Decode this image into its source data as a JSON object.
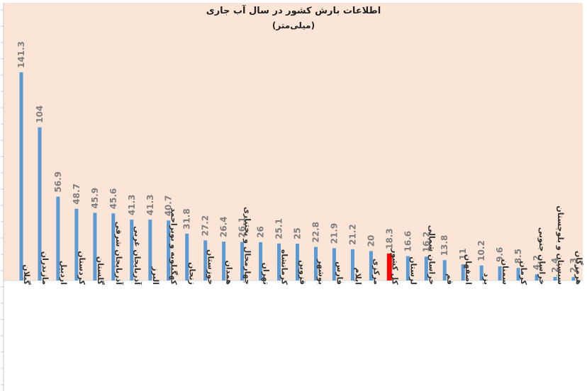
{
  "chart_data": {
    "type": "bar",
    "title": "اطلاعات بارش کشور در سال آب جاری",
    "subtitle": "(میلی‌متر)",
    "xlabel": "",
    "ylabel": "",
    "ylim": [
      0,
      150
    ],
    "grid": false,
    "legend": "none",
    "colors": {
      "background": "#ffffff",
      "plot_area": "#fbe5d6",
      "bar": "#5b9bd5",
      "highlight_bar": "#ff0000",
      "label": "#7f7f7f",
      "category_text": "#333333"
    },
    "highlight_category": "کل کشور",
    "categories": [
      "گیلان",
      "مازندران",
      "اردبیل",
      "کردستان",
      "گلستان",
      "آذربایجان شرقی",
      "آذربایجان غربی",
      "البرز",
      "کهگیلویه و بویراحمد",
      "زنجان",
      "خوزستان",
      "همدان",
      "چهارمحال و بختیاری",
      "تهران",
      "کرمانشاه",
      "قزوین",
      "بوشهر",
      "فارس",
      "ایلام",
      "مرکزی",
      "کل کشور",
      "لرستان",
      "خراسان شمالی",
      "قم",
      "اصفهان",
      "یزد",
      "سمنان",
      "کرمان",
      "خراسان جنوبی",
      "سیستان و بلوچستان",
      "هرمزگان"
    ],
    "values": [
      141.3,
      104,
      56.9,
      48.7,
      45.9,
      45.6,
      41.3,
      41.3,
      40.7,
      31.8,
      27.2,
      26.4,
      26.1,
      26,
      25.1,
      25,
      22.8,
      21.9,
      21.2,
      20,
      18.3,
      16.6,
      16.2,
      13.8,
      11,
      10.2,
      9.6,
      8.5,
      4.2,
      2.4,
      2.3
    ],
    "value_labels": [
      "141.3",
      "104",
      "56.9",
      "48.7",
      "45.9",
      "45.6",
      "41.3",
      "41.3",
      "40.7",
      "31.8",
      "27.2",
      "26.4",
      "26.1",
      "26",
      "25.1",
      "25",
      "22.8",
      "21.9",
      "21.2",
      "20",
      "18.3",
      "16.6",
      "16.2",
      "13.8",
      "11",
      "10.2",
      "9.6",
      "8.5",
      "4.2",
      "2.4",
      "2.3"
    ]
  }
}
